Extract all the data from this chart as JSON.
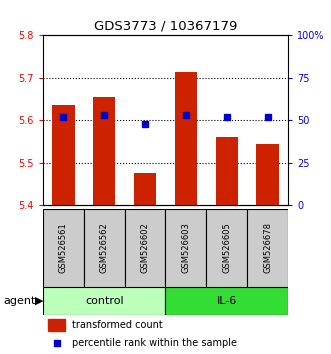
{
  "title": "GDS3773 / 10367179",
  "samples": [
    "GSM526561",
    "GSM526562",
    "GSM526602",
    "GSM526603",
    "GSM526605",
    "GSM526678"
  ],
  "bar_values": [
    5.635,
    5.655,
    5.475,
    5.715,
    5.56,
    5.545
  ],
  "percentile_values": [
    52,
    53,
    48,
    53,
    52,
    52
  ],
  "groups": [
    {
      "label": "control",
      "indices": [
        0,
        1,
        2
      ],
      "color": "#bbffbb"
    },
    {
      "label": "IL-6",
      "indices": [
        3,
        4,
        5
      ],
      "color": "#33dd33"
    }
  ],
  "ylim_left": [
    5.4,
    5.8
  ],
  "ylim_right": [
    0,
    100
  ],
  "yticks_left": [
    5.4,
    5.5,
    5.6,
    5.7,
    5.8
  ],
  "yticks_right": [
    0,
    25,
    50,
    75,
    100
  ],
  "ytick_labels_right": [
    "0",
    "25",
    "50",
    "75",
    "100%"
  ],
  "bar_color": "#cc2200",
  "dot_color": "#0000cc",
  "bar_bottom": 5.4,
  "bar_width": 0.55,
  "grid_yticks": [
    5.5,
    5.6,
    5.7
  ],
  "agent_label": "agent",
  "legend_bar_label": "transformed count",
  "legend_dot_label": "percentile rank within the sample"
}
